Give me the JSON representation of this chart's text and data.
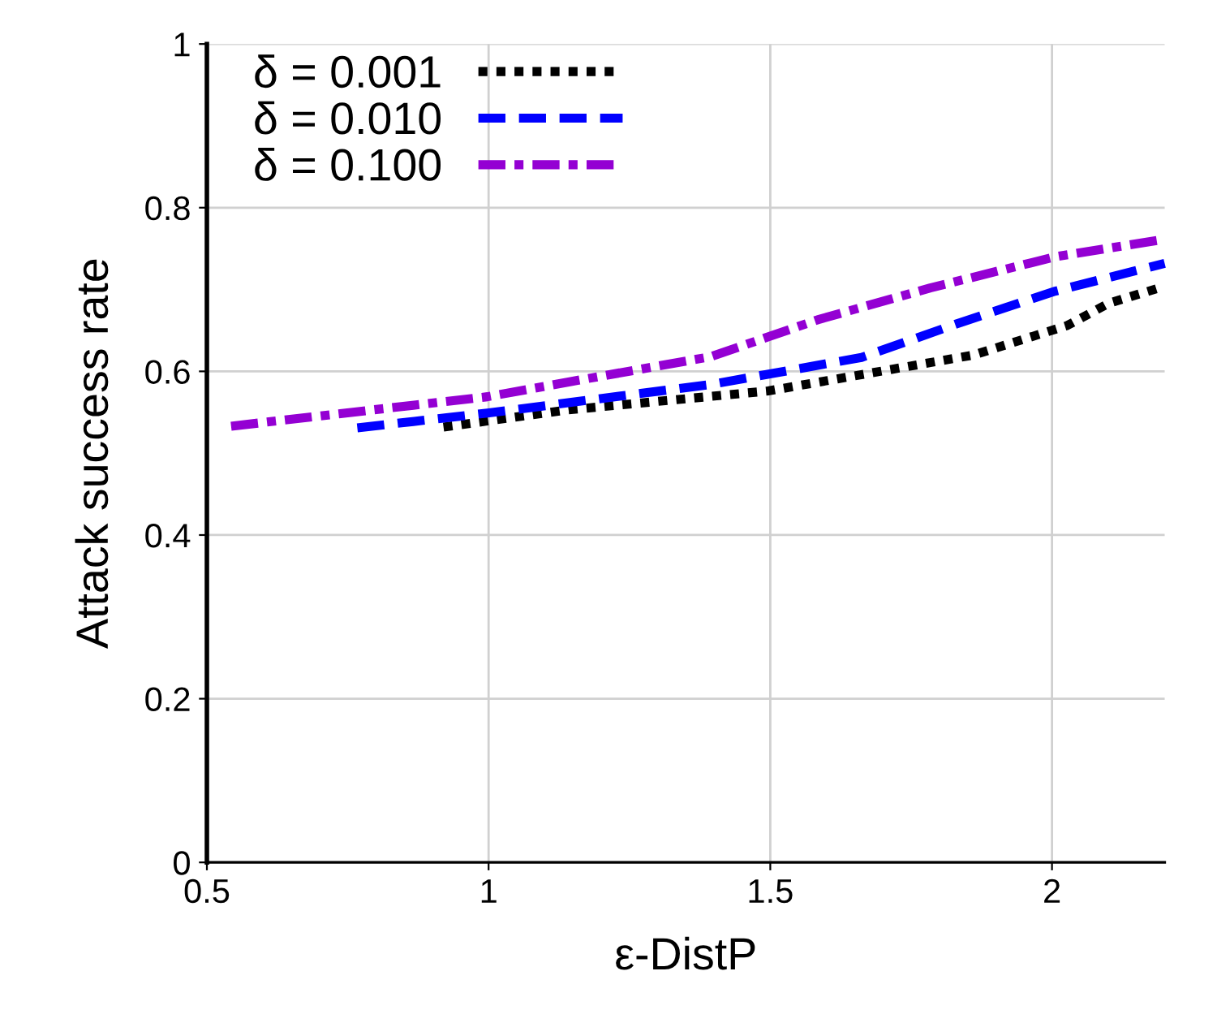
{
  "chart_data": {
    "type": "line",
    "xlabel": "ε-DistP",
    "ylabel": "Attack success rate",
    "xlim": [
      0.5,
      2.2
    ],
    "xticks": [
      0.5,
      1,
      1.5,
      2
    ],
    "ylim": [
      0,
      1
    ],
    "yticks": [
      0,
      0.2,
      0.4,
      0.6,
      0.8,
      1
    ],
    "grid": true,
    "legend": "top left",
    "marker": "none",
    "series": [
      {
        "name": "δ = 0.001",
        "color": "#000000",
        "line_style": "dotted",
        "x": [
          0.92,
          1.142,
          1.496,
          1.861,
          2.027,
          2.1,
          2.2
        ],
        "values": [
          0.532,
          0.553,
          0.576,
          0.62,
          0.656,
          0.683,
          0.704
        ]
      },
      {
        "name": "δ = 0.010",
        "color": "#0000ff",
        "line_style": "dashed",
        "x": [
          0.767,
          0.998,
          1.395,
          1.662,
          1.839,
          2.006,
          2.2
        ],
        "values": [
          0.531,
          0.549,
          0.584,
          0.617,
          0.66,
          0.698,
          0.732
        ]
      },
      {
        "name": "δ = 0.100",
        "color": "#9400d3",
        "line_style": "dashdot",
        "x": [
          0.543,
          0.998,
          1.142,
          1.395,
          1.584,
          1.784,
          2.006,
          2.187
        ],
        "values": [
          0.533,
          0.569,
          0.587,
          0.618,
          0.663,
          0.702,
          0.74,
          0.76
        ]
      }
    ]
  }
}
